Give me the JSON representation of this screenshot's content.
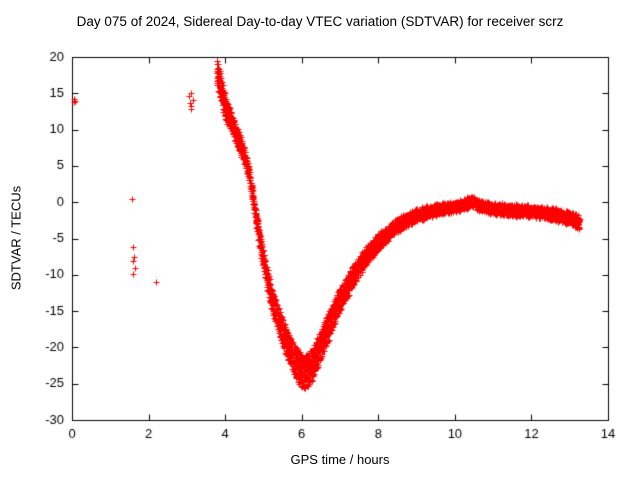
{
  "chart_data": {
    "type": "scatter",
    "title": "Day 075 of 2024, Sidereal Day-to-day VTEC variation (SDTVAR) for receiver scrz",
    "xlabel": "GPS time / hours",
    "ylabel": "SDTVAR / TECUs",
    "xlim": [
      0,
      14
    ],
    "ylim": [
      -30,
      20
    ],
    "xticks": [
      0,
      2,
      4,
      6,
      8,
      10,
      12,
      14
    ],
    "yticks": [
      -30,
      -25,
      -20,
      -15,
      -10,
      -5,
      0,
      5,
      10,
      15,
      20
    ],
    "grid": false,
    "legend": "none",
    "marker": "plus",
    "marker_color": "#ff0000",
    "outlier_points": [
      [
        0.05,
        14.2
      ],
      [
        0.08,
        14.0
      ],
      [
        0.06,
        13.8
      ],
      [
        1.58,
        0.5
      ],
      [
        1.6,
        -6.2
      ],
      [
        1.62,
        -7.6
      ],
      [
        1.6,
        -8.1
      ],
      [
        1.65,
        -9.0
      ],
      [
        1.6,
        -9.9
      ],
      [
        2.2,
        -11.0
      ],
      [
        3.05,
        14.6
      ],
      [
        3.08,
        13.6
      ],
      [
        3.1,
        15.0
      ],
      [
        3.12,
        13.2
      ],
      [
        3.15,
        14.1
      ],
      [
        3.1,
        12.8
      ]
    ],
    "band_keypoints": [
      [
        3.78,
        18.0
      ],
      [
        3.9,
        15.5
      ],
      [
        4.0,
        13.0
      ],
      [
        4.1,
        11.8
      ],
      [
        4.2,
        10.5
      ],
      [
        4.35,
        8.5
      ],
      [
        4.5,
        6.5
      ],
      [
        4.6,
        4.5
      ],
      [
        4.7,
        1.5
      ],
      [
        4.8,
        -2.0
      ],
      [
        4.9,
        -5.0
      ],
      [
        5.0,
        -8.0
      ],
      [
        5.1,
        -10.5
      ],
      [
        5.2,
        -13.0
      ],
      [
        5.35,
        -15.5
      ],
      [
        5.5,
        -18.0
      ],
      [
        5.7,
        -20.5
      ],
      [
        5.9,
        -22.5
      ],
      [
        6.05,
        -23.5
      ],
      [
        6.2,
        -23.0
      ],
      [
        6.35,
        -21.5
      ],
      [
        6.5,
        -19.5
      ],
      [
        6.7,
        -17.0
      ],
      [
        6.9,
        -14.5
      ],
      [
        7.1,
        -12.5
      ],
      [
        7.3,
        -10.5
      ],
      [
        7.6,
        -8.0
      ],
      [
        7.9,
        -6.0
      ],
      [
        8.2,
        -4.5
      ],
      [
        8.5,
        -3.2
      ],
      [
        8.8,
        -2.3
      ],
      [
        9.1,
        -1.6
      ],
      [
        9.4,
        -1.2
      ],
      [
        9.7,
        -0.9
      ],
      [
        10.0,
        -0.6
      ],
      [
        10.3,
        -0.2
      ],
      [
        10.45,
        0.2
      ],
      [
        10.6,
        -0.3
      ],
      [
        10.9,
        -0.8
      ],
      [
        11.2,
        -1.0
      ],
      [
        11.5,
        -1.2
      ],
      [
        11.8,
        -1.1
      ],
      [
        12.1,
        -1.3
      ],
      [
        12.4,
        -1.5
      ],
      [
        12.7,
        -1.8
      ],
      [
        13.0,
        -2.2
      ],
      [
        13.25,
        -2.8
      ]
    ],
    "band_traces": 6,
    "band_jitter": 0.6
  }
}
